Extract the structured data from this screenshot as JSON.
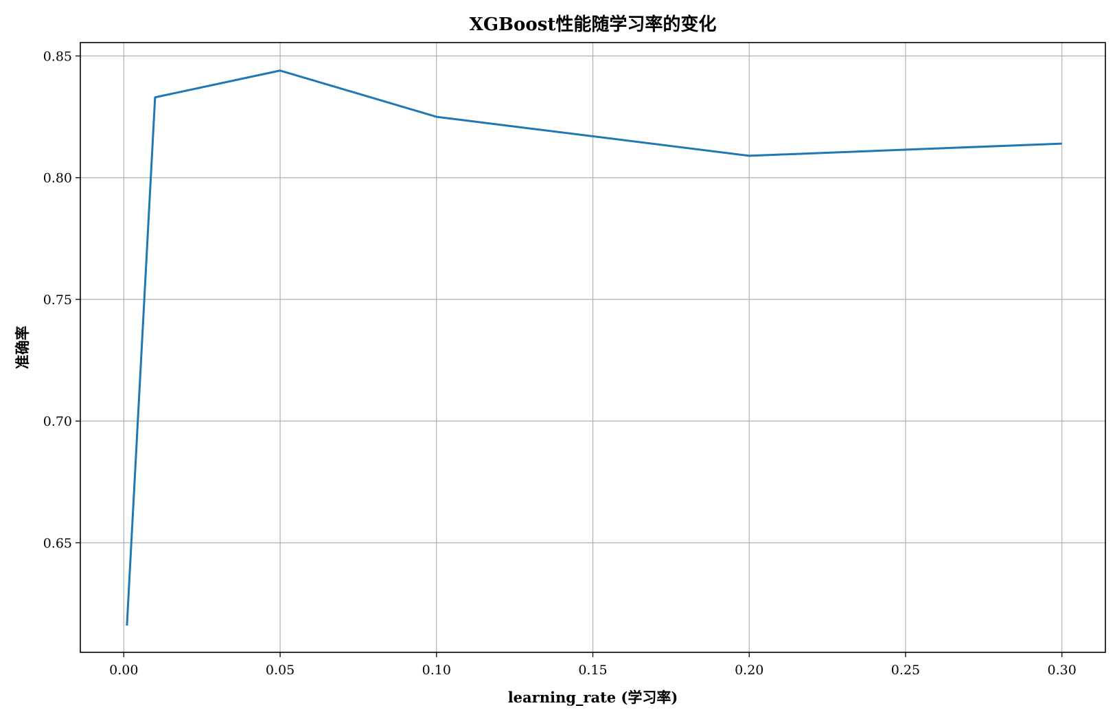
{
  "chart_data": {
    "type": "line",
    "title": "XGBoost性能随学习率的变化",
    "xlabel": "learning_rate (学习率)",
    "ylabel": "准确率",
    "xlim": [
      -0.0139,
      0.3139
    ],
    "ylim": [
      0.605,
      0.8555
    ],
    "xticks": [
      0.0,
      0.05,
      0.1,
      0.15,
      0.2,
      0.25,
      0.3
    ],
    "xtick_labels": [
      "0.00",
      "0.05",
      "0.10",
      "0.15",
      "0.20",
      "0.25",
      "0.30"
    ],
    "yticks": [
      0.65,
      0.7,
      0.75,
      0.8,
      0.85
    ],
    "ytick_labels": [
      "0.65",
      "0.70",
      "0.75",
      "0.80",
      "0.85"
    ],
    "grid": true,
    "series": [
      {
        "color": "#1f77b4",
        "x": [
          0.001,
          0.01,
          0.05,
          0.1,
          0.2,
          0.3
        ],
        "y": [
          0.616,
          0.833,
          0.844,
          0.825,
          0.809,
          0.814
        ]
      }
    ]
  }
}
